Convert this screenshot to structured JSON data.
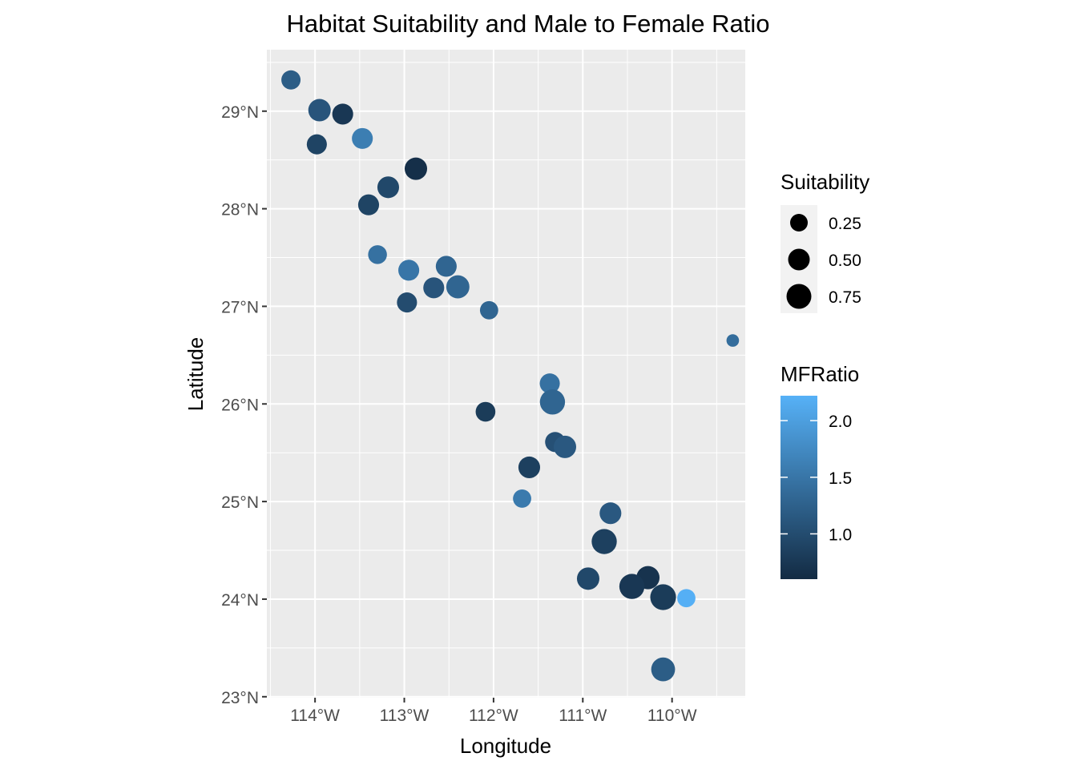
{
  "chart_data": {
    "type": "scatter",
    "title": "Habitat Suitability and Male to Female Ratio",
    "xlabel": "Longitude",
    "ylabel": "Latitude",
    "xlim": [
      -114.54,
      -109.18
    ],
    "ylim": [
      22.99,
      29.63
    ],
    "x_ticks": [
      -114,
      -113,
      -112,
      -111,
      -110
    ],
    "x_tick_labels": [
      "114°W",
      "113°W",
      "112°W",
      "111°W",
      "110°W"
    ],
    "y_ticks": [
      23,
      24,
      25,
      26,
      27,
      28,
      29
    ],
    "y_tick_labels": [
      "23°N",
      "24°N",
      "25°N",
      "26°N",
      "27°N",
      "28°N",
      "29°N"
    ],
    "grid": true,
    "size_legend": {
      "title": "Suitability",
      "entries": [
        {
          "label": "0.25",
          "value": 0.25
        },
        {
          "label": "0.50",
          "value": 0.5
        },
        {
          "label": "0.75",
          "value": 0.75
        }
      ]
    },
    "color_legend": {
      "title": "MFRatio",
      "range": [
        0.6,
        2.22
      ],
      "ticks": [
        {
          "label": "1.0",
          "value": 1.0
        },
        {
          "label": "1.5",
          "value": 1.5
        },
        {
          "label": "2.0",
          "value": 2.0
        }
      ],
      "low_color": "#132B43",
      "high_color": "#56B1F7"
    },
    "points": [
      {
        "x": -114.27,
        "y": 29.32,
        "suitability": 0.35,
        "mfratio": 1.2
      },
      {
        "x": -113.95,
        "y": 29.01,
        "suitability": 0.55,
        "mfratio": 1.1
      },
      {
        "x": -113.69,
        "y": 28.97,
        "suitability": 0.45,
        "mfratio": 0.75
      },
      {
        "x": -113.98,
        "y": 28.66,
        "suitability": 0.4,
        "mfratio": 0.9
      },
      {
        "x": -113.47,
        "y": 28.72,
        "suitability": 0.45,
        "mfratio": 1.6
      },
      {
        "x": -112.87,
        "y": 28.41,
        "suitability": 0.55,
        "mfratio": 0.65
      },
      {
        "x": -113.18,
        "y": 28.22,
        "suitability": 0.5,
        "mfratio": 0.95
      },
      {
        "x": -113.4,
        "y": 28.04,
        "suitability": 0.45,
        "mfratio": 0.9
      },
      {
        "x": -113.3,
        "y": 27.53,
        "suitability": 0.33,
        "mfratio": 1.45
      },
      {
        "x": -112.95,
        "y": 27.37,
        "suitability": 0.45,
        "mfratio": 1.5
      },
      {
        "x": -112.53,
        "y": 27.41,
        "suitability": 0.45,
        "mfratio": 1.3
      },
      {
        "x": -112.67,
        "y": 27.19,
        "suitability": 0.45,
        "mfratio": 1.1
      },
      {
        "x": -112.4,
        "y": 27.2,
        "suitability": 0.6,
        "mfratio": 1.3
      },
      {
        "x": -112.97,
        "y": 27.04,
        "suitability": 0.4,
        "mfratio": 1.0
      },
      {
        "x": -112.05,
        "y": 26.96,
        "suitability": 0.3,
        "mfratio": 1.3
      },
      {
        "x": -109.32,
        "y": 26.65,
        "suitability": 0.08,
        "mfratio": 1.4
      },
      {
        "x": -111.37,
        "y": 26.21,
        "suitability": 0.4,
        "mfratio": 1.45
      },
      {
        "x": -111.34,
        "y": 26.02,
        "suitability": 0.75,
        "mfratio": 1.3
      },
      {
        "x": -112.09,
        "y": 25.92,
        "suitability": 0.38,
        "mfratio": 0.8
      },
      {
        "x": -111.31,
        "y": 25.61,
        "suitability": 0.4,
        "mfratio": 1.05
      },
      {
        "x": -111.2,
        "y": 25.56,
        "suitability": 0.55,
        "mfratio": 1.15
      },
      {
        "x": -111.6,
        "y": 25.35,
        "suitability": 0.5,
        "mfratio": 0.85
      },
      {
        "x": -111.68,
        "y": 25.03,
        "suitability": 0.3,
        "mfratio": 1.55
      },
      {
        "x": -110.69,
        "y": 24.88,
        "suitability": 0.5,
        "mfratio": 1.15
      },
      {
        "x": -110.76,
        "y": 24.59,
        "suitability": 0.75,
        "mfratio": 0.85
      },
      {
        "x": -110.94,
        "y": 24.21,
        "suitability": 0.55,
        "mfratio": 0.95
      },
      {
        "x": -110.27,
        "y": 24.22,
        "suitability": 0.6,
        "mfratio": 0.7
      },
      {
        "x": -110.45,
        "y": 24.13,
        "suitability": 0.75,
        "mfratio": 0.75
      },
      {
        "x": -110.1,
        "y": 24.02,
        "suitability": 0.8,
        "mfratio": 0.8
      },
      {
        "x": -109.84,
        "y": 24.01,
        "suitability": 0.3,
        "mfratio": 2.2
      },
      {
        "x": -110.1,
        "y": 23.28,
        "suitability": 0.65,
        "mfratio": 1.2
      }
    ]
  }
}
